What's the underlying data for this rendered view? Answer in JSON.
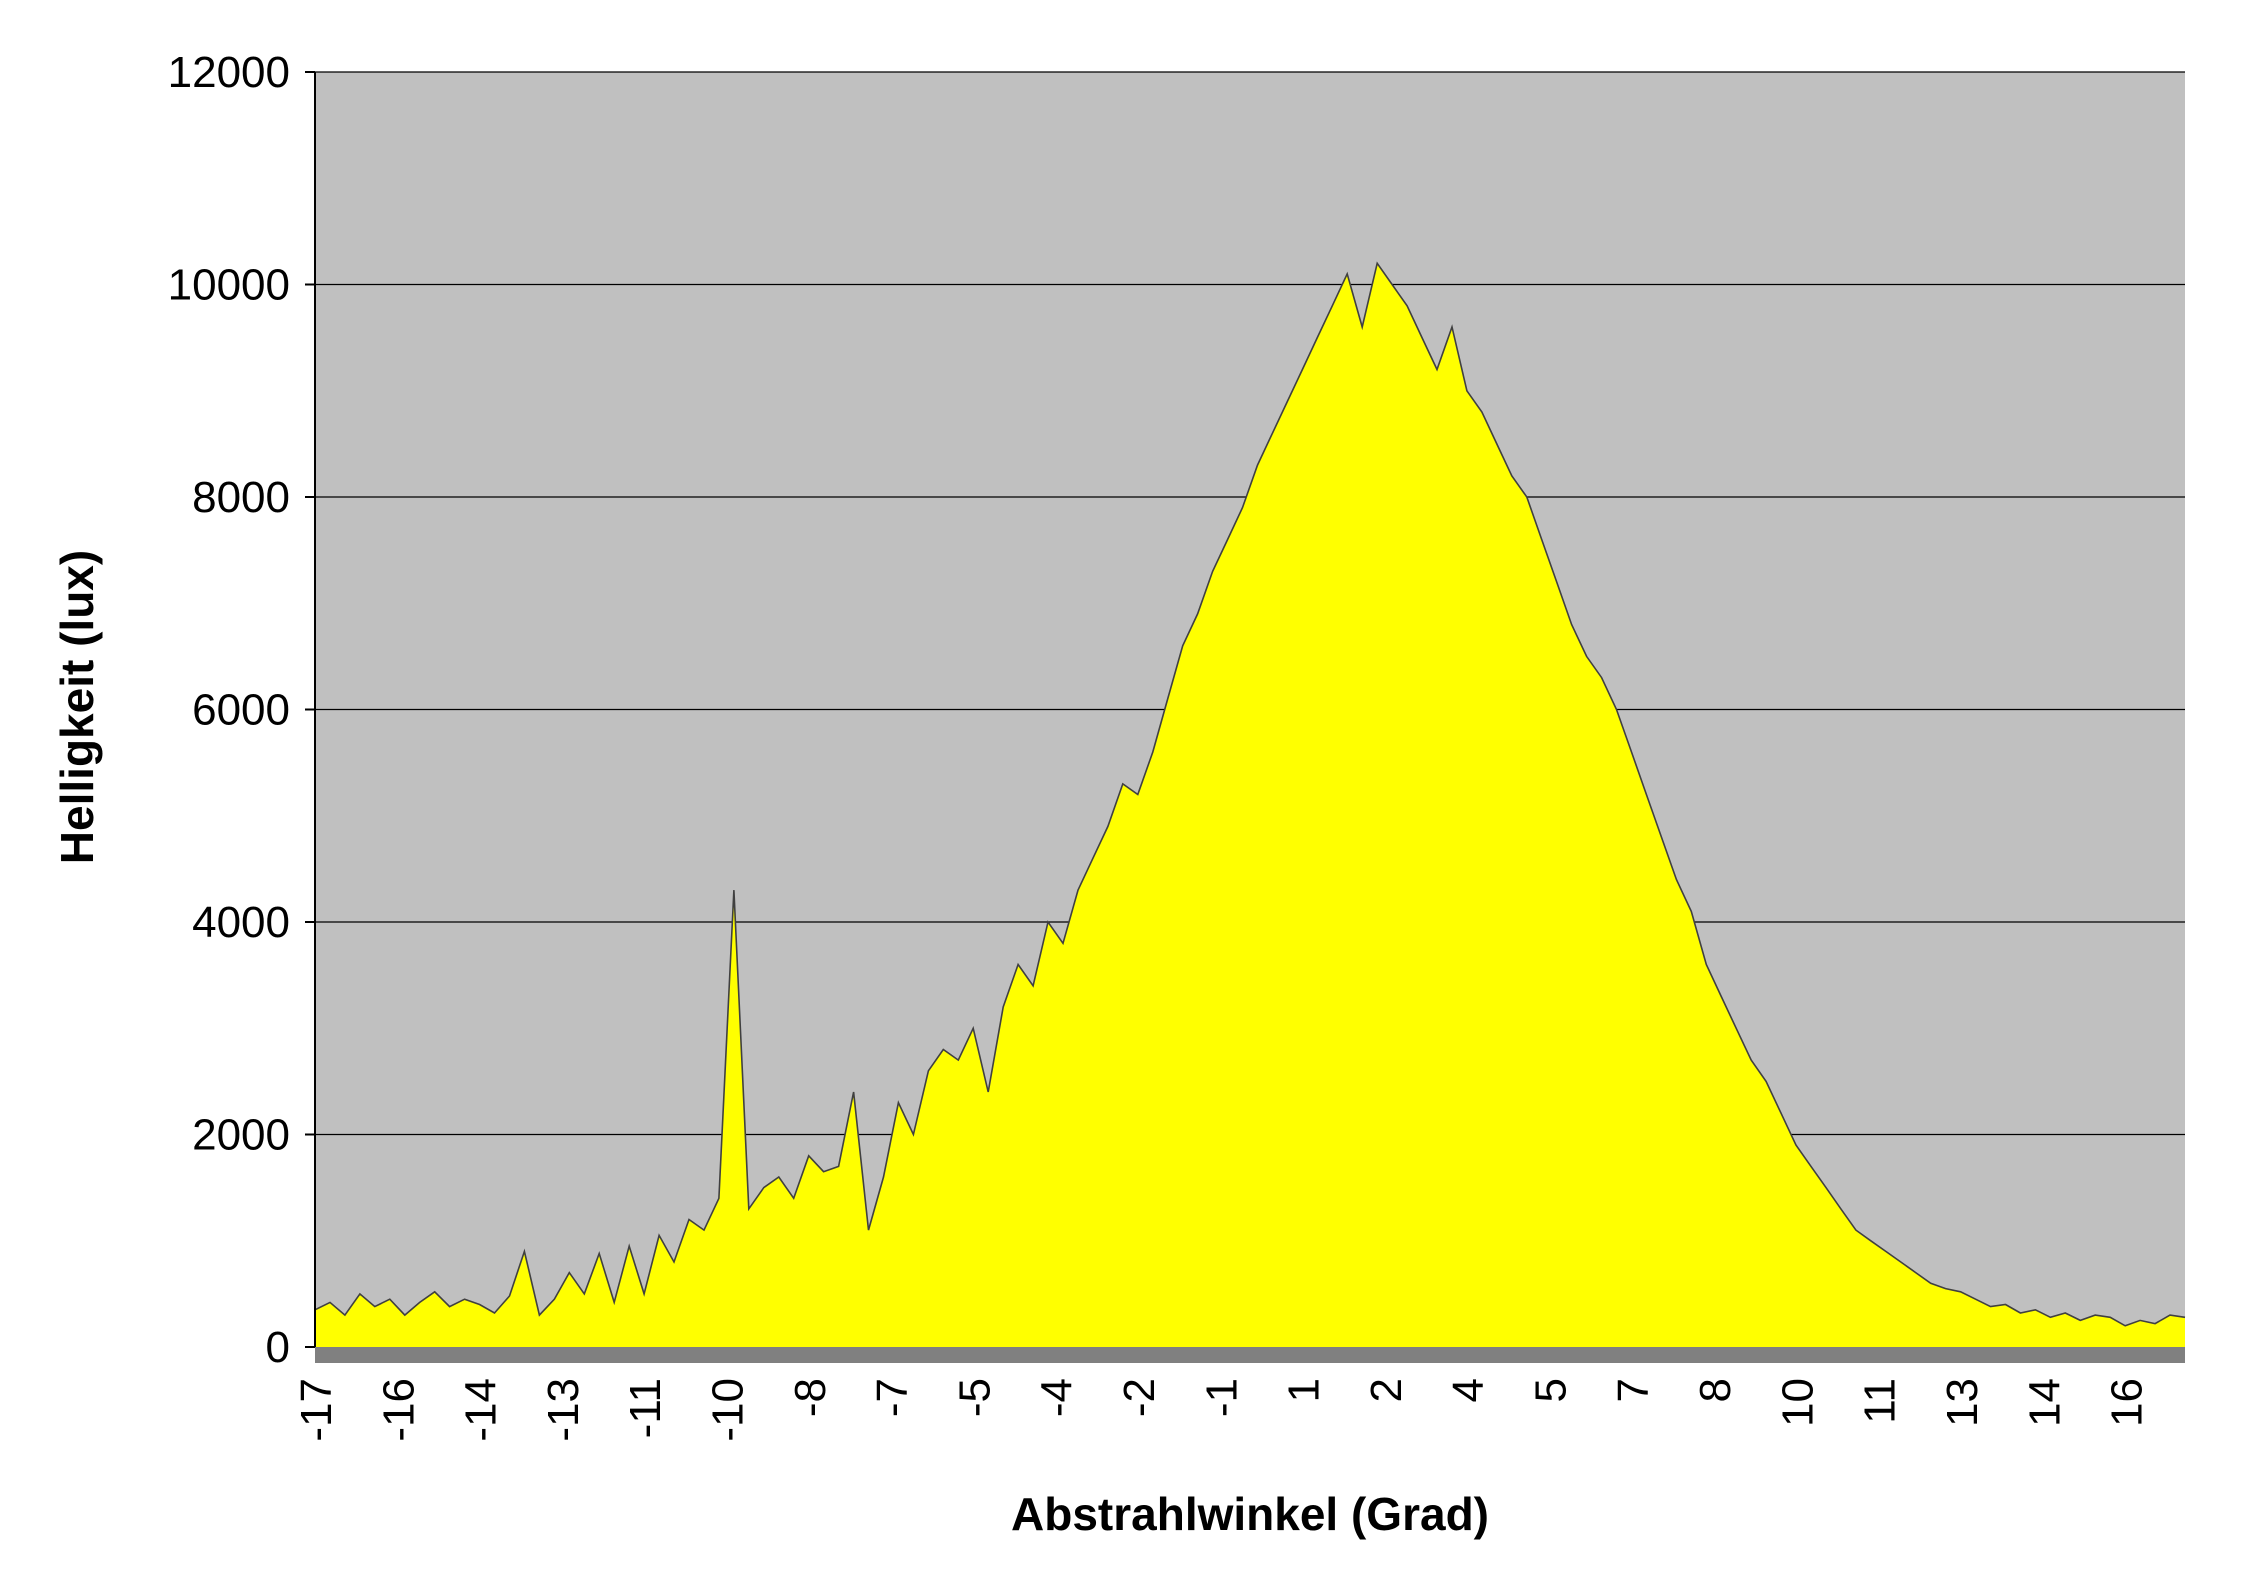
{
  "chart_data": {
    "type": "area",
    "title": "",
    "xlabel": "Abstrahlwinkel (Grad)",
    "ylabel": "Helligkeit (lux)",
    "ylim": [
      0,
      12000
    ],
    "yticks": [
      "0",
      "2000",
      "4000",
      "6000",
      "8000",
      "10000",
      "12000"
    ],
    "xticks": [
      "-17",
      "-16",
      "-14",
      "-13",
      "-11",
      "-10",
      "-8",
      "-7",
      "-5",
      "-4",
      "-2",
      "-1",
      "1",
      "2",
      "4",
      "5",
      "7",
      "8",
      "10",
      "11",
      "13",
      "14",
      "16"
    ],
    "grid": true,
    "legend": "none",
    "colors": {
      "plot_background": "#c0c0c0",
      "fill": "#ffff00",
      "line": "#404040",
      "gridline": "#000000",
      "floor": "#808080"
    },
    "series": [
      {
        "values": [
          350,
          420,
          300,
          500,
          380,
          450,
          300,
          420,
          520,
          380,
          450,
          400,
          320,
          480,
          900,
          300,
          450,
          700,
          500,
          880,
          420,
          950,
          500,
          1050,
          800,
          1200,
          1100,
          1400,
          4300,
          1300,
          1500,
          1600,
          1400,
          1800,
          1650,
          1700,
          2400,
          1100,
          1600,
          2300,
          2000,
          2600,
          2800,
          2700,
          3000,
          2400,
          3200,
          3600,
          3400,
          4000,
          3800,
          4300,
          4600,
          4900,
          5300,
          5200,
          5600,
          6100,
          6600,
          6900,
          7300,
          7600,
          7900,
          8300,
          8600,
          8900,
          9200,
          9500,
          9800,
          10100,
          9600,
          10200,
          10000,
          9800,
          9500,
          9200,
          9600,
          9000,
          8800,
          8500,
          8200,
          8000,
          7600,
          7200,
          6800,
          6500,
          6300,
          6000,
          5600,
          5200,
          4800,
          4400,
          4100,
          3600,
          3300,
          3000,
          2700,
          2500,
          2200,
          1900,
          1700,
          1500,
          1300,
          1100,
          1000,
          900,
          800,
          700,
          600,
          550,
          520,
          450,
          380,
          400,
          320,
          350,
          280,
          320,
          250,
          300,
          280,
          200,
          250,
          220,
          300,
          280
        ]
      }
    ]
  }
}
